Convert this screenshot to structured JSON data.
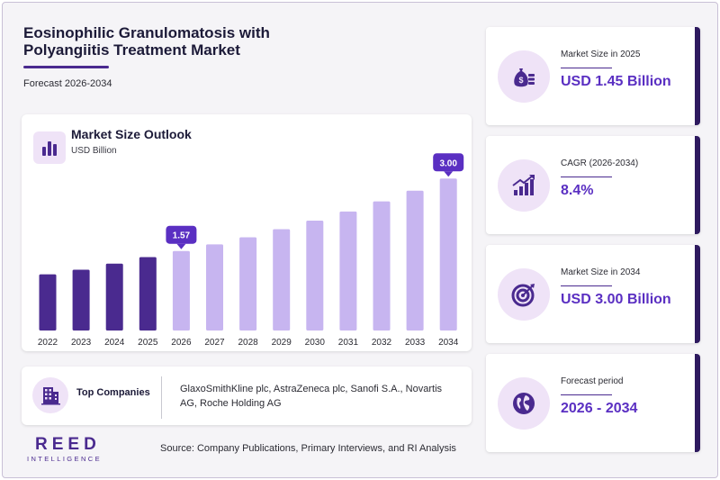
{
  "header": {
    "title": "Eosinophilic Granulomatosis with Polyangiitis Treatment Market",
    "subtitle": "Forecast 2026-2034"
  },
  "chart_card": {
    "title": "Market Size Outlook",
    "unit": "USD Billion",
    "icon": "bar-chart-icon"
  },
  "chart_data": {
    "type": "bar",
    "title": "Market Size Outlook",
    "ylabel": "USD Billion",
    "categories": [
      "2022",
      "2023",
      "2024",
      "2025",
      "2026",
      "2027",
      "2028",
      "2029",
      "2030",
      "2031",
      "2032",
      "2033",
      "2034"
    ],
    "values": [
      1.11,
      1.2,
      1.32,
      1.45,
      1.57,
      1.7,
      1.84,
      2.0,
      2.17,
      2.35,
      2.55,
      2.76,
      3.0
    ],
    "callouts": [
      {
        "category": "2026",
        "label": "1.57"
      },
      {
        "category": "2034",
        "label": "3.00"
      }
    ],
    "ylim": [
      0,
      3.2
    ],
    "historical_color": "#4a2a8f",
    "forecast_color": "#c7b5f0",
    "grid": false,
    "show_y_axis": false
  },
  "companies": {
    "label": "Top Companies",
    "text": "GlaxoSmithKline plc, AstraZeneca plc, Sanofi S.A., Novartis AG, Roche Holding AG",
    "icon": "building-icon"
  },
  "stats": [
    {
      "label": "Market Size in 2025",
      "value": "USD 1.45 Billion",
      "icon": "money-bag-icon"
    },
    {
      "label": "CAGR (2026-2034)",
      "value": "8.4%",
      "icon": "growth-chart-icon"
    },
    {
      "label": "Market Size in 2034",
      "value": "USD 3.00 Billion",
      "icon": "target-icon"
    },
    {
      "label": "Forecast period",
      "value": "2026 - 2034",
      "icon": "globe-icon"
    }
  ],
  "footer": {
    "logo_main": "REED",
    "logo_sub": "INTELLIGENCE",
    "source": "Source: Company Publications, Primary Interviews, and RI Analysis"
  },
  "colors": {
    "accent": "#5a2fc2",
    "dark": "#2e1a5f",
    "icon_bg": "#efe3f7"
  }
}
